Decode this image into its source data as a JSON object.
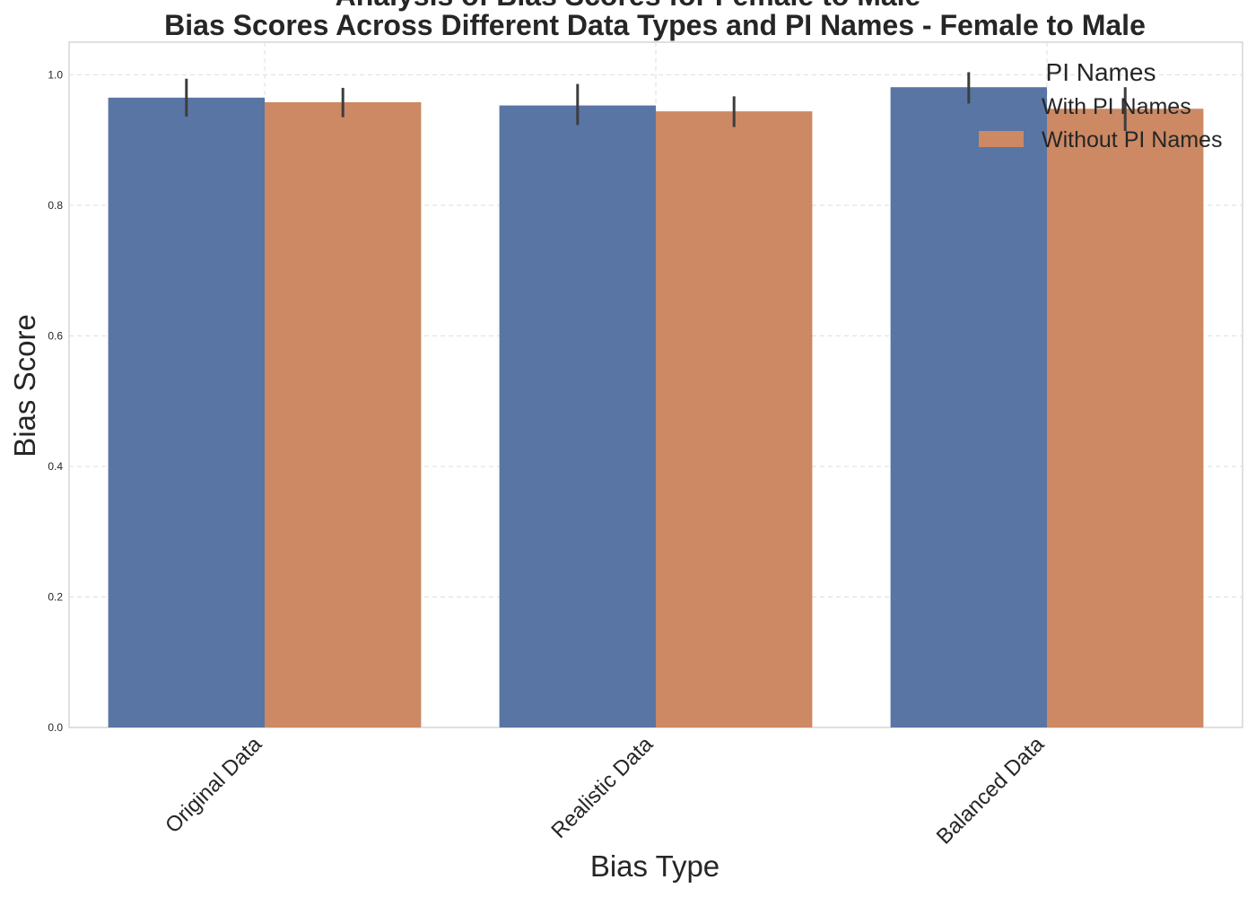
{
  "chart_data": {
    "type": "bar",
    "suptitle": "Analysis of Bias Scores for Female to Male",
    "title": "Bias Scores Across Different Data Types and PI Names - Female to Male",
    "xlabel": "Bias Type",
    "ylabel": "Bias Score",
    "ylim": [
      0,
      1.05
    ],
    "yticks": [
      0.0,
      0.2,
      0.4,
      0.6,
      0.8,
      1.0
    ],
    "ytick_labels": [
      "0.0",
      "0.2",
      "0.4",
      "0.6",
      "0.8",
      "1.0"
    ],
    "categories": [
      "Original Data",
      "Realistic Data",
      "Balanced Data"
    ],
    "grid": true,
    "legend": {
      "title": "PI Names",
      "placement": "top-right"
    },
    "series": [
      {
        "name": "With PI Names",
        "color": "#5975a4",
        "values": [
          0.965,
          0.953,
          0.981
        ],
        "ci_low": [
          0.936,
          0.923,
          0.956
        ],
        "ci_high": [
          0.994,
          0.986,
          1.004
        ]
      },
      {
        "name": "Without PI Names",
        "color": "#cc8963",
        "values": [
          0.958,
          0.944,
          0.948
        ],
        "ci_low": [
          0.935,
          0.92,
          0.914
        ],
        "ci_high": [
          0.98,
          0.967,
          0.981
        ]
      }
    ]
  }
}
